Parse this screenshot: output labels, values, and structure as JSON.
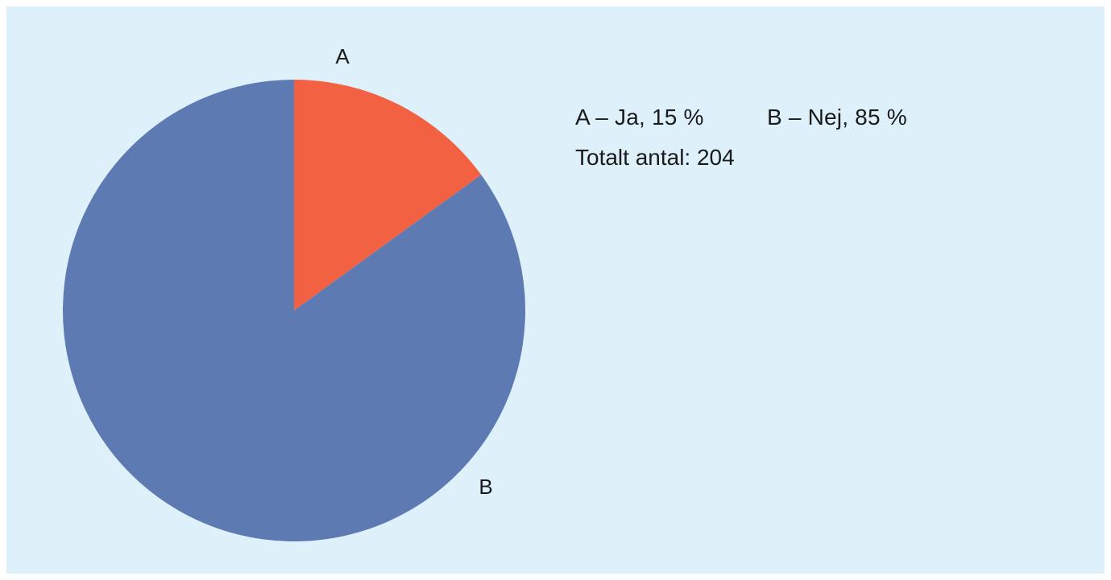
{
  "chart_data": {
    "type": "pie",
    "title": "",
    "slices": [
      {
        "label": "A",
        "value": 15,
        "color": "#f26242"
      },
      {
        "label": "B",
        "value": 85,
        "color": "#5d7bb2"
      }
    ],
    "legend": {
      "placement": "right",
      "entries": [
        "A – Ja, 15 %",
        "B – Nej, 85 %"
      ]
    },
    "total": {
      "label": "Totalt antal:",
      "value": "204"
    }
  },
  "colors": {
    "background": "#def1fb",
    "slice_a": "#f26242",
    "slice_b": "#5d7bb2"
  }
}
